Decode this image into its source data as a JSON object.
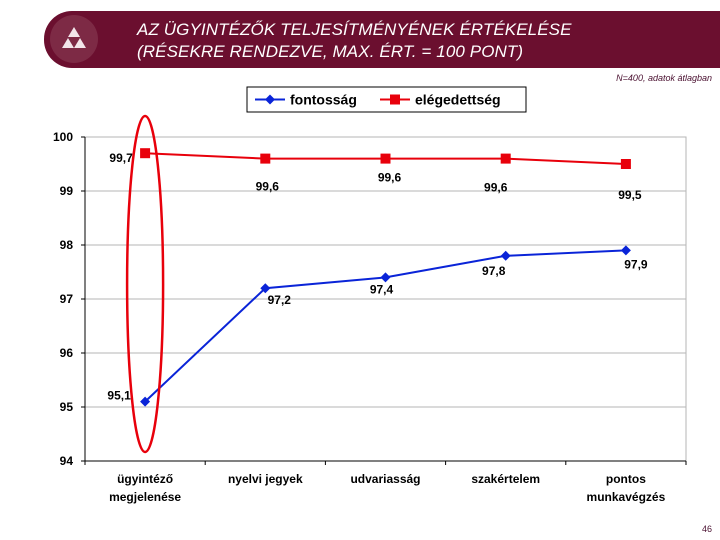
{
  "header": {
    "title_line1": "AZ ÜGYINTÉZŐK TELJESÍTMÉNYÉNEK ÉRTÉKELÉSE",
    "title_line2": "(RÉSEKRE RENDEZVE, MAX. ÉRT. = 100 PONT)",
    "logo_icon": "triforce-logo-icon"
  },
  "note": "N=400, adatok átlagban",
  "page_number": "46",
  "colors": {
    "header_bg": "#6b0f2f",
    "fontossag": "#0a24d8",
    "elegedettseg": "#e8000b",
    "highlight_ellipse": "#e8000b"
  },
  "chart_data": {
    "type": "line",
    "categories": [
      [
        "ügyintéző",
        "megjelenése"
      ],
      [
        "nyelvi jegyek"
      ],
      [
        "udvariasság"
      ],
      [
        "szakértelem"
      ],
      [
        "pontos",
        "munkavégzés"
      ]
    ],
    "series": [
      {
        "name": "fontosság",
        "values": [
          95.1,
          97.2,
          97.4,
          97.8,
          97.9
        ],
        "labels": [
          "95,1",
          "97,2",
          "97,4",
          "97,8",
          "97,9"
        ],
        "marker": "diamond"
      },
      {
        "name": "elégedettség",
        "values": [
          99.7,
          99.6,
          99.6,
          99.6,
          99.5
        ],
        "labels": [
          "99,7",
          "99,6",
          "99,6",
          "99,6",
          "99,5"
        ],
        "marker": "square"
      }
    ],
    "ylim": [
      94,
      100
    ],
    "yticks": [
      94,
      95,
      96,
      97,
      98,
      99,
      100
    ],
    "ytick_labels": [
      "94",
      "95",
      "96",
      "97",
      "98",
      "99",
      "100"
    ],
    "grid": true,
    "legend_position": "top-center",
    "highlight": "first category circled"
  }
}
